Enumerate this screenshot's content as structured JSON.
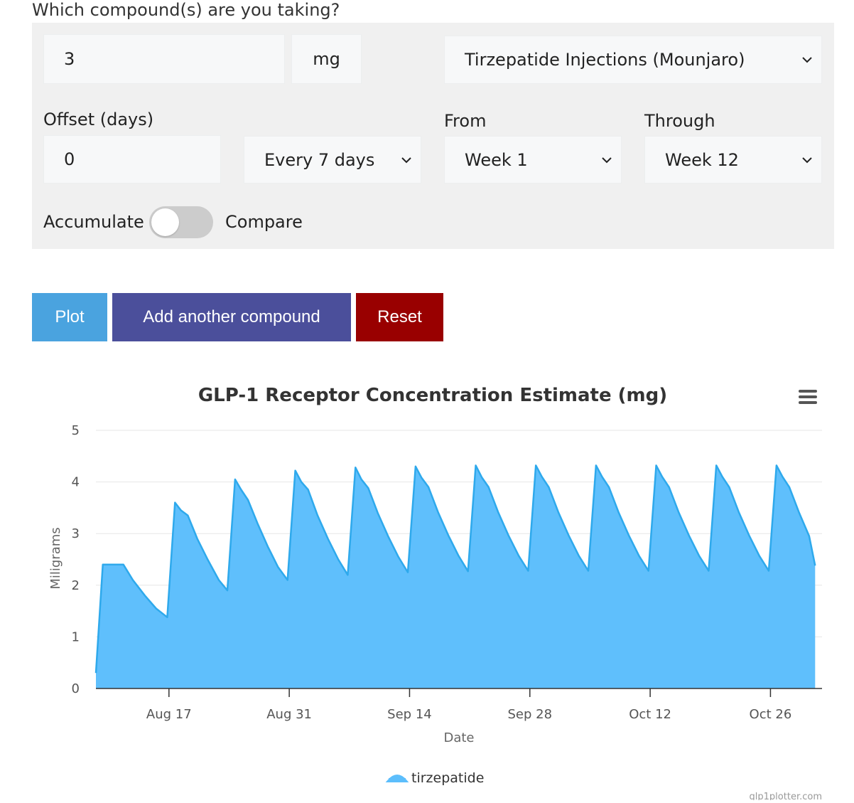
{
  "form": {
    "question": "Which compound(s) are you taking?",
    "dose_value": "3",
    "dose_unit": "mg",
    "compound_selected": "Tirzepatide Injections (Mounjaro)",
    "offset_label": "Offset (days)",
    "offset_value": "0",
    "frequency_selected": "Every 7 days",
    "from_label": "From",
    "from_selected": "Week 1",
    "through_label": "Through",
    "through_selected": "Week 12",
    "accumulate_label": "Accumulate",
    "compare_label": "Compare"
  },
  "buttons": {
    "plot": "Plot",
    "add": "Add another compound",
    "reset": "Reset"
  },
  "colors": {
    "plot": "#4aa3df",
    "add": "#4b4f9b",
    "reset": "#990000",
    "series": "#5cbefc"
  },
  "credit": "glp1plotter.com",
  "chart_data": {
    "type": "area",
    "title": "GLP-1 Receptor Concentration Estimate (mg)",
    "xlabel": "Date",
    "ylabel": "Miligrams",
    "ylim": [
      0,
      5
    ],
    "yticks": [
      0,
      1,
      2,
      3,
      4,
      5
    ],
    "xticks": [
      "Aug 17",
      "Aug 31",
      "Sep 14",
      "Sep 28",
      "Oct 12",
      "Oct 26"
    ],
    "xtick_days": [
      7,
      21,
      35,
      49,
      63,
      77
    ],
    "xlim_days": [
      -1.5,
      83
    ],
    "legend": "bottom-center",
    "grid": true,
    "series": [
      {
        "name": "tirzepatide",
        "points": [
          [
            -1.5,
            0.3
          ],
          [
            -0.7,
            2.4
          ],
          [
            1.7,
            2.4
          ],
          [
            2.8,
            2.1
          ],
          [
            4.2,
            1.8
          ],
          [
            5.5,
            1.55
          ],
          [
            6.8,
            1.38
          ],
          [
            7.7,
            3.6
          ],
          [
            8.4,
            3.45
          ],
          [
            9.2,
            3.35
          ],
          [
            10.3,
            2.9
          ],
          [
            11.5,
            2.5
          ],
          [
            12.8,
            2.1
          ],
          [
            13.8,
            1.9
          ],
          [
            14.7,
            4.05
          ],
          [
            15.4,
            3.85
          ],
          [
            16.2,
            3.65
          ],
          [
            17.3,
            3.2
          ],
          [
            18.5,
            2.75
          ],
          [
            19.7,
            2.35
          ],
          [
            20.8,
            2.1
          ],
          [
            21.7,
            4.22
          ],
          [
            22.4,
            4.0
          ],
          [
            23.2,
            3.85
          ],
          [
            24.3,
            3.35
          ],
          [
            25.5,
            2.9
          ],
          [
            26.7,
            2.5
          ],
          [
            27.8,
            2.2
          ],
          [
            28.7,
            4.28
          ],
          [
            29.4,
            4.05
          ],
          [
            30.2,
            3.88
          ],
          [
            31.3,
            3.4
          ],
          [
            32.5,
            2.95
          ],
          [
            33.7,
            2.55
          ],
          [
            34.8,
            2.25
          ],
          [
            35.7,
            4.3
          ],
          [
            36.4,
            4.08
          ],
          [
            37.2,
            3.9
          ],
          [
            38.3,
            3.42
          ],
          [
            39.5,
            2.97
          ],
          [
            40.7,
            2.57
          ],
          [
            41.8,
            2.27
          ],
          [
            42.7,
            4.32
          ],
          [
            43.4,
            4.09
          ],
          [
            44.2,
            3.9
          ],
          [
            45.3,
            3.42
          ],
          [
            46.5,
            2.97
          ],
          [
            47.7,
            2.57
          ],
          [
            48.8,
            2.28
          ],
          [
            49.7,
            4.32
          ],
          [
            50.4,
            4.1
          ],
          [
            51.2,
            3.9
          ],
          [
            52.3,
            3.42
          ],
          [
            53.5,
            2.97
          ],
          [
            54.7,
            2.57
          ],
          [
            55.8,
            2.28
          ],
          [
            56.7,
            4.32
          ],
          [
            57.4,
            4.1
          ],
          [
            58.2,
            3.9
          ],
          [
            59.3,
            3.42
          ],
          [
            60.5,
            2.97
          ],
          [
            61.7,
            2.57
          ],
          [
            62.8,
            2.28
          ],
          [
            63.7,
            4.32
          ],
          [
            64.4,
            4.1
          ],
          [
            65.2,
            3.9
          ],
          [
            66.3,
            3.42
          ],
          [
            67.5,
            2.97
          ],
          [
            68.7,
            2.57
          ],
          [
            69.8,
            2.28
          ],
          [
            70.7,
            4.32
          ],
          [
            71.4,
            4.1
          ],
          [
            72.2,
            3.9
          ],
          [
            73.3,
            3.42
          ],
          [
            74.5,
            2.97
          ],
          [
            75.7,
            2.57
          ],
          [
            76.8,
            2.28
          ],
          [
            77.7,
            4.32
          ],
          [
            78.4,
            4.1
          ],
          [
            79.2,
            3.9
          ],
          [
            80.3,
            3.42
          ],
          [
            81.5,
            2.95
          ],
          [
            82.2,
            2.38
          ]
        ]
      }
    ]
  }
}
